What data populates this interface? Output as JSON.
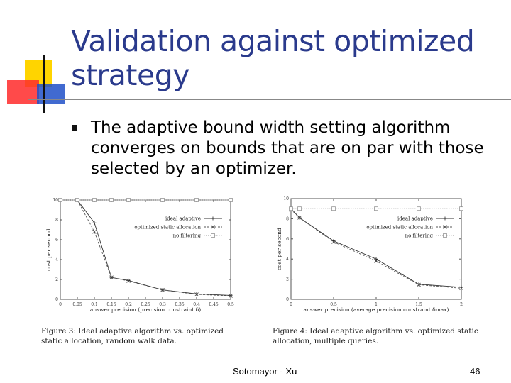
{
  "slide": {
    "title": "Validation against optimized strategy",
    "bullet": "The adaptive bound width setting algorithm converges on bounds that are on par with those selected by an optimizer.",
    "footer": "Sotomayor - Xu",
    "page_number": "46",
    "colors": {
      "title": "#2a3a8c",
      "deco_yellow": "#ffd400",
      "deco_red": "#ff2a2a",
      "deco_blue": "#2050c8"
    }
  },
  "captions": [
    "Figure 3: Ideal adaptive algorithm vs. optimized static allocation, random walk data.",
    "Figure 4: Ideal adaptive algorithm vs. optimized static allocation, multiple queries."
  ],
  "chart_data": [
    {
      "type": "line",
      "xlabel": "answer precision (precision constraint δ)",
      "ylabel": "cost per second",
      "xlim": [
        0,
        0.5
      ],
      "ylim": [
        0,
        10
      ],
      "xticks": [
        "0",
        "0.05",
        "0.1",
        "0.15",
        "0.2",
        "0.25",
        "0.3",
        "0.35",
        "0.4",
        "0.45",
        "0.5"
      ],
      "yticks": [
        "0",
        "2",
        "4",
        "6",
        "8",
        "10"
      ],
      "legend_position": "top-right",
      "series": [
        {
          "name": "ideal adaptive",
          "marker": "+",
          "dash": "solid",
          "x": [
            0,
            0.05,
            0.1,
            0.15,
            0.2,
            0.3,
            0.4,
            0.5
          ],
          "y": [
            10,
            10,
            7.7,
            2.2,
            1.9,
            0.95,
            0.55,
            0.4
          ]
        },
        {
          "name": "optimized static allocation",
          "marker": "x",
          "dash": "dashed",
          "x": [
            0,
            0.05,
            0.1,
            0.15,
            0.2,
            0.3,
            0.4,
            0.5
          ],
          "y": [
            10,
            10,
            6.8,
            2.2,
            1.85,
            0.95,
            0.5,
            0.35
          ]
        },
        {
          "name": "no filtering",
          "marker": "square",
          "dash": "dotted",
          "x": [
            0,
            0.05,
            0.1,
            0.15,
            0.2,
            0.3,
            0.4,
            0.5
          ],
          "y": [
            10,
            10,
            10,
            10,
            10,
            10,
            10,
            10
          ]
        }
      ]
    },
    {
      "type": "line",
      "xlabel": "answer precision (average precision constraint δmax)",
      "ylabel": "cost per second",
      "xlim": [
        0,
        2
      ],
      "ylim": [
        0,
        10
      ],
      "xticks": [
        "0",
        "0.5",
        "1",
        "1.5",
        "2"
      ],
      "yticks": [
        "0",
        "2",
        "4",
        "6",
        "8",
        "10"
      ],
      "legend_position": "top-right",
      "series": [
        {
          "name": "ideal adaptive",
          "marker": "+",
          "dash": "solid",
          "x": [
            0,
            0.1,
            0.5,
            1,
            1.5,
            2
          ],
          "y": [
            9,
            8.1,
            5.8,
            4.0,
            1.5,
            1.2
          ]
        },
        {
          "name": "optimized static allocation",
          "marker": "x",
          "dash": "dashed",
          "x": [
            0,
            0.1,
            0.5,
            1,
            1.5,
            2
          ],
          "y": [
            8.9,
            8.1,
            5.7,
            3.8,
            1.45,
            1.1
          ]
        },
        {
          "name": "no filtering",
          "marker": "square",
          "dash": "dotted",
          "x": [
            0,
            0.1,
            0.5,
            1,
            1.5,
            2
          ],
          "y": [
            9,
            9,
            9,
            9,
            9,
            9
          ]
        }
      ]
    }
  ]
}
